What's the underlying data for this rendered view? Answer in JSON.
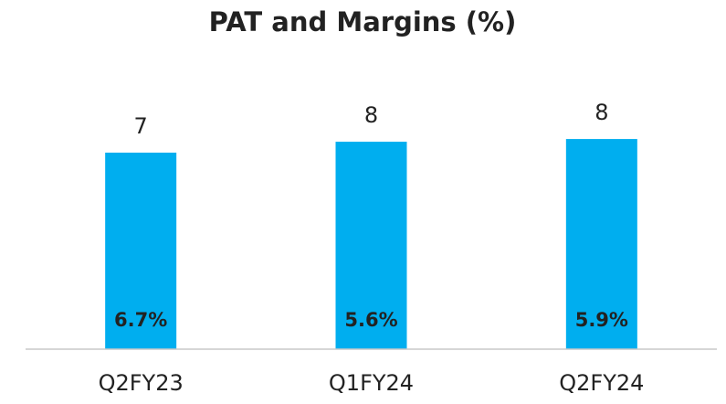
{
  "chart_data": {
    "type": "bar",
    "title": "PAT and Margins (%)",
    "categories": [
      "Q2FY23",
      "Q1FY24",
      "Q2FY24"
    ],
    "values": [
      7.2,
      7.6,
      7.7
    ],
    "value_labels": [
      "7",
      "8",
      "8"
    ],
    "margins": [
      6.7,
      5.6,
      5.9
    ],
    "margin_labels": [
      "6.7%",
      "5.6%",
      "5.9%"
    ],
    "color": "#00aeef",
    "ylim": [
      0,
      10
    ]
  }
}
